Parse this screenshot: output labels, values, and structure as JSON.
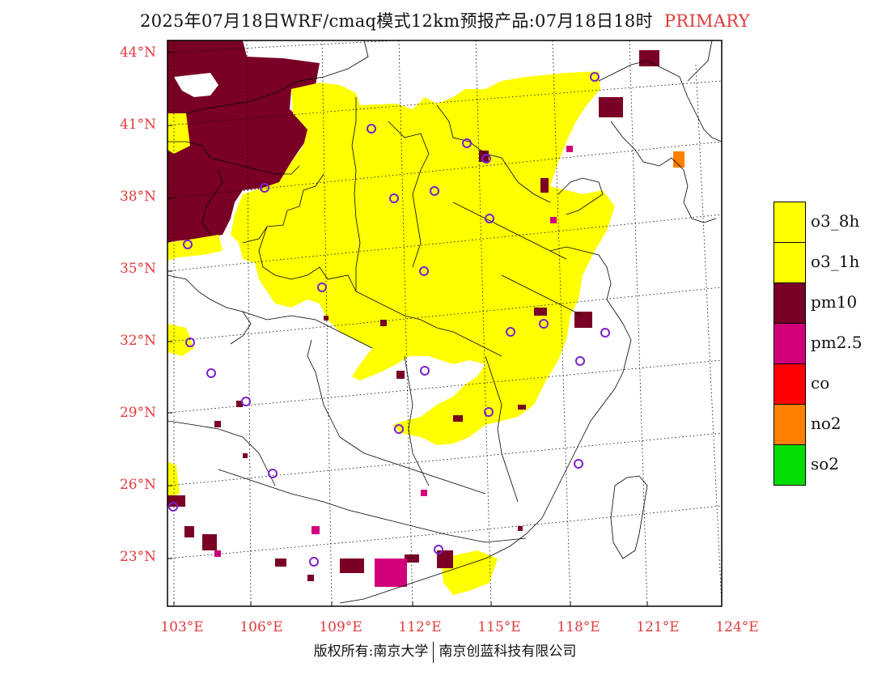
{
  "title": {
    "main": "2025年07月18日WRF/cmaq模式12km预报产品:07月18日18时",
    "tag": "PRIMARY"
  },
  "colors": {
    "label_red": "#e23b3b",
    "o3_8h": "#ffff00",
    "o3_1h": "#ffff00",
    "pm10": "#7a0025",
    "pm25": "#d1007a",
    "co": "#ff0000",
    "no2": "#ff7f00",
    "so2": "#00dd00",
    "station_circle": "#7a22cc"
  },
  "axes": {
    "lat_labels": [
      "44°N",
      "41°N",
      "38°N",
      "35°N",
      "32°N",
      "29°N",
      "26°N",
      "23°N"
    ],
    "lon_labels": [
      "103°E",
      "106°E",
      "109°E",
      "112°E",
      "115°E",
      "118°E",
      "121°E",
      "124°E"
    ]
  },
  "legend": [
    {
      "label": "o3_8h",
      "color_key": "o3_8h"
    },
    {
      "label": "o3_1h",
      "color_key": "o3_1h"
    },
    {
      "label": "pm10",
      "color_key": "pm10"
    },
    {
      "label": "pm2.5",
      "color_key": "pm25"
    },
    {
      "label": "co",
      "color_key": "co"
    },
    {
      "label": "no2",
      "color_key": "no2"
    },
    {
      "label": "so2",
      "color_key": "so2"
    }
  ],
  "copyright": {
    "left": "版权所有:南京大学",
    "right": "南京创蓝科技有限公司"
  }
}
